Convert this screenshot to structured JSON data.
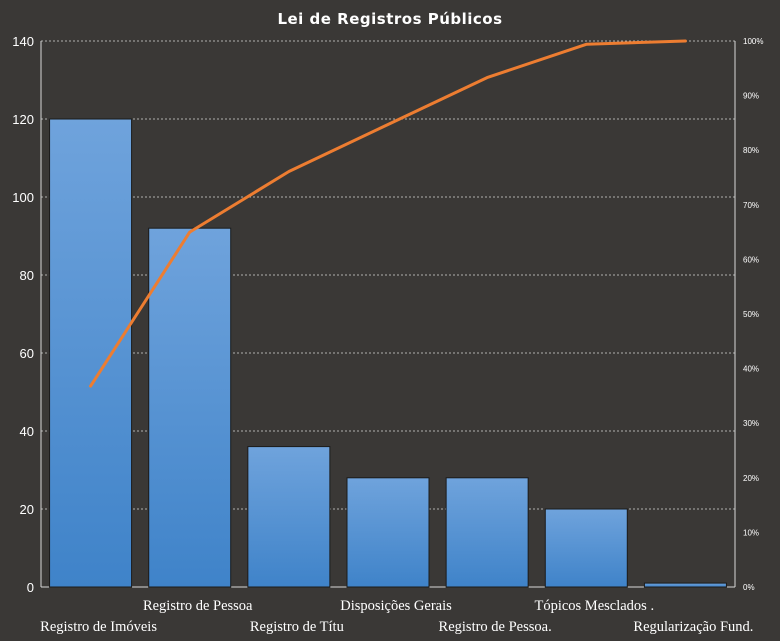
{
  "chart_data": {
    "type": "bar",
    "title": "Lei de Registros Públicos",
    "categories": [
      "Registro de Imóveis",
      "Registro de Pessoa",
      "Registro de Títu",
      "Disposições Gerais",
      "Registro de Pessoa.",
      "Tópicos Mesclados   .",
      "Regularização Fund."
    ],
    "values": [
      120,
      92,
      36,
      28,
      28,
      20,
      1
    ],
    "cumulative_percent": [
      36.8,
      65.0,
      76.1,
      84.7,
      93.3,
      99.4,
      100
    ],
    "ylim": [
      0,
      140
    ],
    "yticks": [
      "0",
      "20",
      "40",
      "60",
      "80",
      "100",
      "120",
      "140"
    ],
    "y2lim": [
      0,
      100
    ],
    "y2ticks": [
      "0%",
      "10%",
      "20%",
      "30%",
      "40%",
      "50%",
      "60%",
      "70%",
      "80%",
      "90%",
      "100%"
    ],
    "grid": true,
    "colors": {
      "background": "#3a3836",
      "bar_top": "#6fa3dc",
      "bar_bottom": "#3f83c9",
      "bar_border": "#1b1b1b",
      "line": "#ed7d31",
      "text": "#ffffff",
      "grid": "#d8d8d8"
    }
  }
}
